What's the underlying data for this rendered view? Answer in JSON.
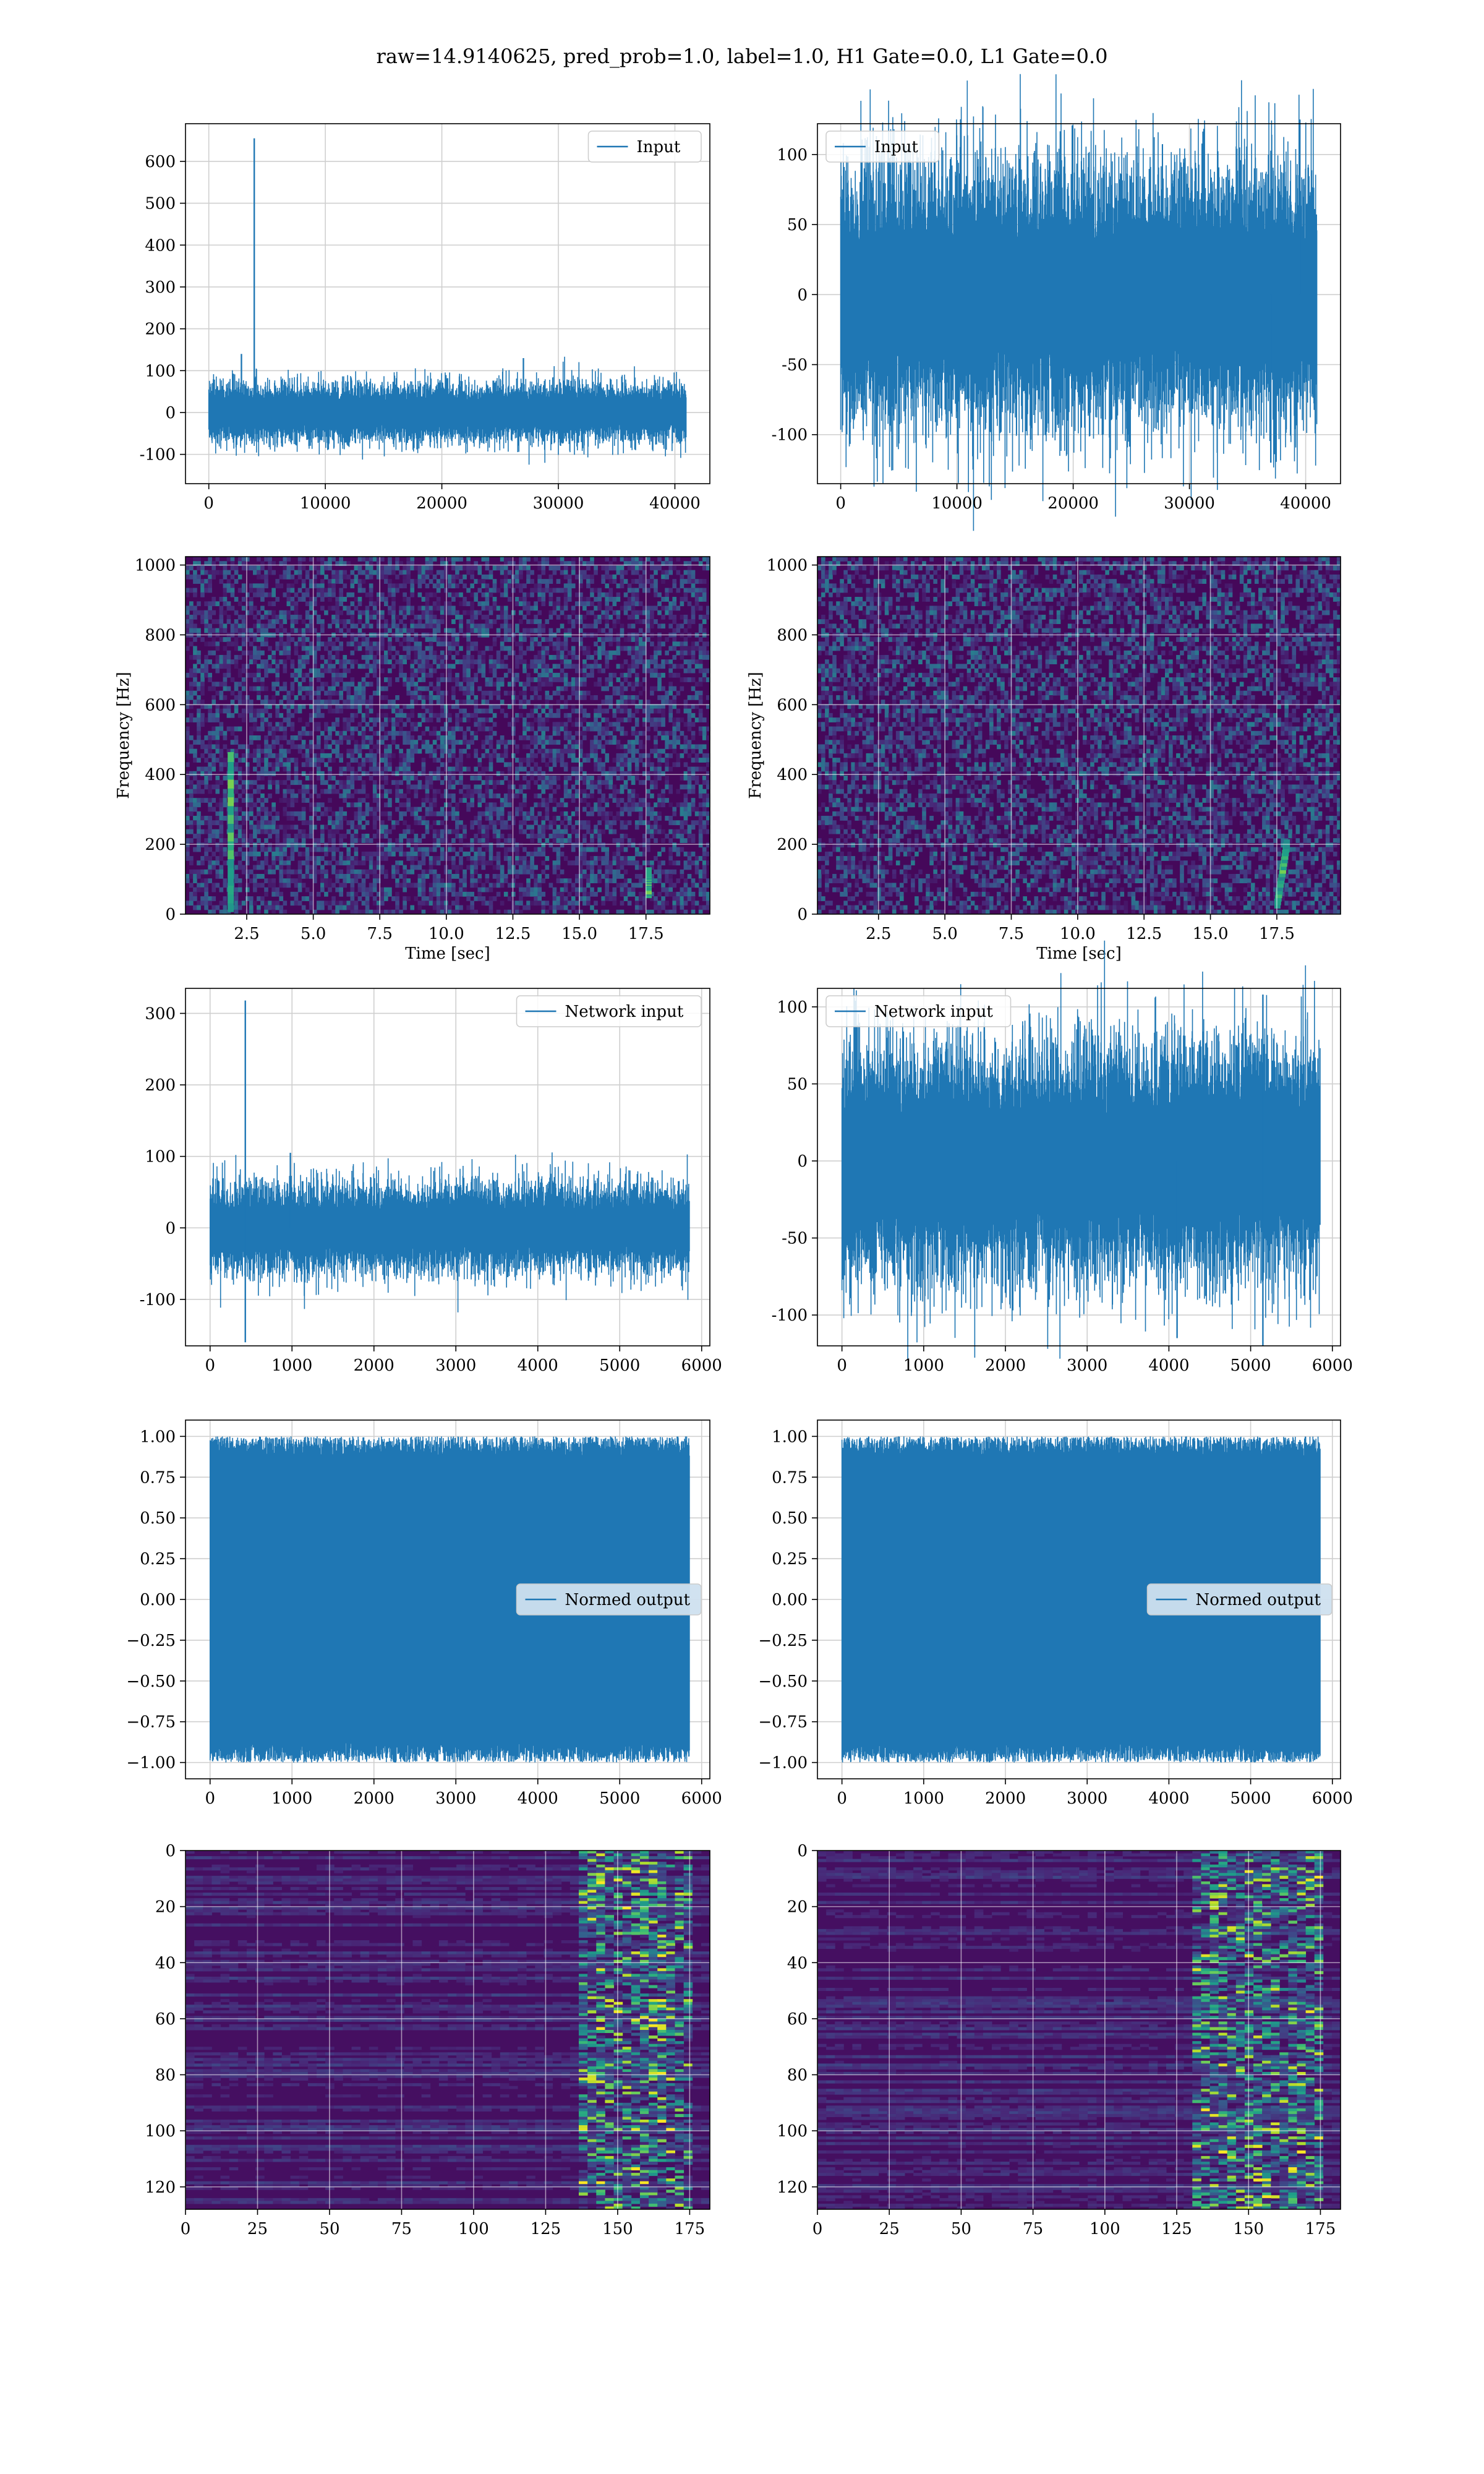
{
  "figure": {
    "suptitle": "raw=14.9140625, pred_prob=1.0, label=1.0, H1 Gate=0.0, L1 Gate=0.0"
  },
  "colors": {
    "line": "#1f77b4",
    "grid": "#cfcfcf",
    "spec_bg": "#3b0f70",
    "viridis_low": "#440154",
    "viridis_mid": "#21918c",
    "viridis_high": "#fde725"
  },
  "chart_data": [
    {
      "id": "input-h1",
      "type": "line",
      "title": "",
      "xlabel": "",
      "ylabel": "",
      "legend": "Input",
      "legend_loc": "upper right",
      "xlim": [
        -2000,
        43000
      ],
      "ylim": [
        -170,
        690
      ],
      "xticks": [
        0,
        10000,
        20000,
        30000,
        40000
      ],
      "yticks": [
        -100,
        0,
        100,
        200,
        300,
        400,
        500,
        600
      ],
      "grid": true,
      "series": [
        {
          "name": "Input",
          "n_samples": 40960,
          "amplitude": 80,
          "peaks": [
            [
              3900,
              655
            ],
            [
              2800,
              140
            ],
            [
              27000,
              130
            ]
          ]
        }
      ]
    },
    {
      "id": "input-l1",
      "type": "line",
      "title": "",
      "xlabel": "",
      "ylabel": "",
      "legend": "Input",
      "legend_loc": "upper left",
      "xlim": [
        -2000,
        43000
      ],
      "ylim": [
        -135,
        122
      ],
      "xticks": [
        0,
        10000,
        20000,
        30000,
        40000
      ],
      "yticks": [
        -100,
        -50,
        0,
        50,
        100
      ],
      "grid": true,
      "series": [
        {
          "name": "Input",
          "n_samples": 40960,
          "amplitude": 105,
          "peaks": [
            [
              39500,
              125
            ],
            [
              37000,
              -120
            ]
          ]
        }
      ]
    },
    {
      "id": "spectrogram-h1",
      "type": "heatmap",
      "title": "",
      "xlabel": "Time [sec]",
      "ylabel": "Frequency [Hz]",
      "xlim": [
        0.2,
        19.9
      ],
      "ylim": [
        0,
        1024
      ],
      "xticks": [
        2.5,
        5.0,
        7.5,
        10.0,
        12.5,
        15.0,
        17.5
      ],
      "yticks": [
        0,
        200,
        400,
        600,
        800,
        1000
      ],
      "grid": true,
      "features": [
        {
          "t": 1.9,
          "f_min": 20,
          "f_max": 450,
          "note": "vertical bright streak"
        },
        {
          "t": 17.6,
          "f_min": 60,
          "f_max": 120
        }
      ]
    },
    {
      "id": "spectrogram-l1",
      "type": "heatmap",
      "title": "",
      "xlabel": "Time [sec]",
      "ylabel": "Frequency [Hz]",
      "xlim": [
        0.2,
        19.9
      ],
      "ylim": [
        0,
        1024
      ],
      "xticks": [
        2.5,
        5.0,
        7.5,
        10.0,
        12.5,
        15.0,
        17.5
      ],
      "yticks": [
        0,
        200,
        400,
        600,
        800,
        1000
      ],
      "grid": true,
      "features": [
        {
          "t": 17.9,
          "f_min": 30,
          "f_max": 200,
          "note": "chirp"
        }
      ]
    },
    {
      "id": "network-input-h1",
      "type": "line",
      "title": "",
      "xlabel": "",
      "ylabel": "",
      "legend": "Network input",
      "legend_loc": "upper right",
      "xlim": [
        -300,
        6100
      ],
      "ylim": [
        -165,
        335
      ],
      "xticks": [
        0,
        1000,
        2000,
        3000,
        4000,
        5000,
        6000
      ],
      "yticks": [
        -100,
        0,
        100,
        200,
        300
      ],
      "grid": true,
      "series": [
        {
          "name": "Network input",
          "n_samples": 5850,
          "amplitude": 70,
          "peaks": [
            [
              430,
              318
            ],
            [
              430,
              -160
            ],
            [
              980,
              105
            ]
          ]
        }
      ]
    },
    {
      "id": "network-input-l1",
      "type": "line",
      "title": "",
      "xlabel": "",
      "ylabel": "",
      "legend": "Network input",
      "legend_loc": "upper left",
      "xlim": [
        -300,
        6100
      ],
      "ylim": [
        -120,
        112
      ],
      "xticks": [
        0,
        1000,
        2000,
        3000,
        4000,
        5000,
        6000
      ],
      "yticks": [
        -100,
        -50,
        0,
        50,
        100
      ],
      "grid": true,
      "series": [
        {
          "name": "Network input",
          "n_samples": 5850,
          "amplitude": 85,
          "peaks": [
            [
              5150,
              108
            ],
            [
              5150,
              -120
            ],
            [
              4100,
              -115
            ]
          ]
        }
      ]
    },
    {
      "id": "normed-output-h1",
      "type": "line",
      "title": "",
      "xlabel": "",
      "ylabel": "",
      "legend": "Normed output",
      "legend_loc": "center right",
      "xlim": [
        -300,
        6100
      ],
      "ylim": [
        -1.1,
        1.1
      ],
      "xticks": [
        0,
        1000,
        2000,
        3000,
        4000,
        5000,
        6000
      ],
      "yticks": [
        -1.0,
        -0.75,
        -0.5,
        -0.25,
        0.0,
        0.25,
        0.5,
        0.75,
        1.0
      ],
      "grid": true,
      "series": [
        {
          "name": "Normed output",
          "n_samples": 5850,
          "range": [
            -1.0,
            1.0
          ]
        }
      ]
    },
    {
      "id": "normed-output-l1",
      "type": "line",
      "title": "",
      "xlabel": "",
      "ylabel": "",
      "legend": "Normed output",
      "legend_loc": "center right",
      "xlim": [
        -300,
        6100
      ],
      "ylim": [
        -1.1,
        1.1
      ],
      "xticks": [
        0,
        1000,
        2000,
        3000,
        4000,
        5000,
        6000
      ],
      "yticks": [
        -1.0,
        -0.75,
        -0.5,
        -0.25,
        0.0,
        0.25,
        0.5,
        0.75,
        1.0
      ],
      "grid": true,
      "series": [
        {
          "name": "Normed output",
          "n_samples": 5850,
          "range": [
            -1.0,
            1.0
          ]
        }
      ]
    },
    {
      "id": "feature-map-h1",
      "type": "heatmap",
      "title": "",
      "xlabel": "",
      "ylabel": "",
      "xlim": [
        0,
        182
      ],
      "ylim": [
        128,
        0
      ],
      "xticks": [
        0,
        25,
        50,
        75,
        100,
        125,
        150,
        175
      ],
      "yticks": [
        0,
        20,
        40,
        60,
        80,
        100,
        120
      ],
      "grid": true,
      "features": [
        {
          "x_min": 135,
          "x_max": 175,
          "note": "bright activations"
        }
      ]
    },
    {
      "id": "feature-map-l1",
      "type": "heatmap",
      "title": "",
      "xlabel": "",
      "ylabel": "",
      "xlim": [
        0,
        182
      ],
      "ylim": [
        128,
        0
      ],
      "xticks": [
        0,
        25,
        50,
        75,
        100,
        125,
        150,
        175
      ],
      "yticks": [
        0,
        20,
        40,
        60,
        80,
        100,
        120
      ],
      "grid": true,
      "features": [
        {
          "x_min": 130,
          "x_max": 175,
          "note": "bright activations"
        }
      ]
    }
  ]
}
